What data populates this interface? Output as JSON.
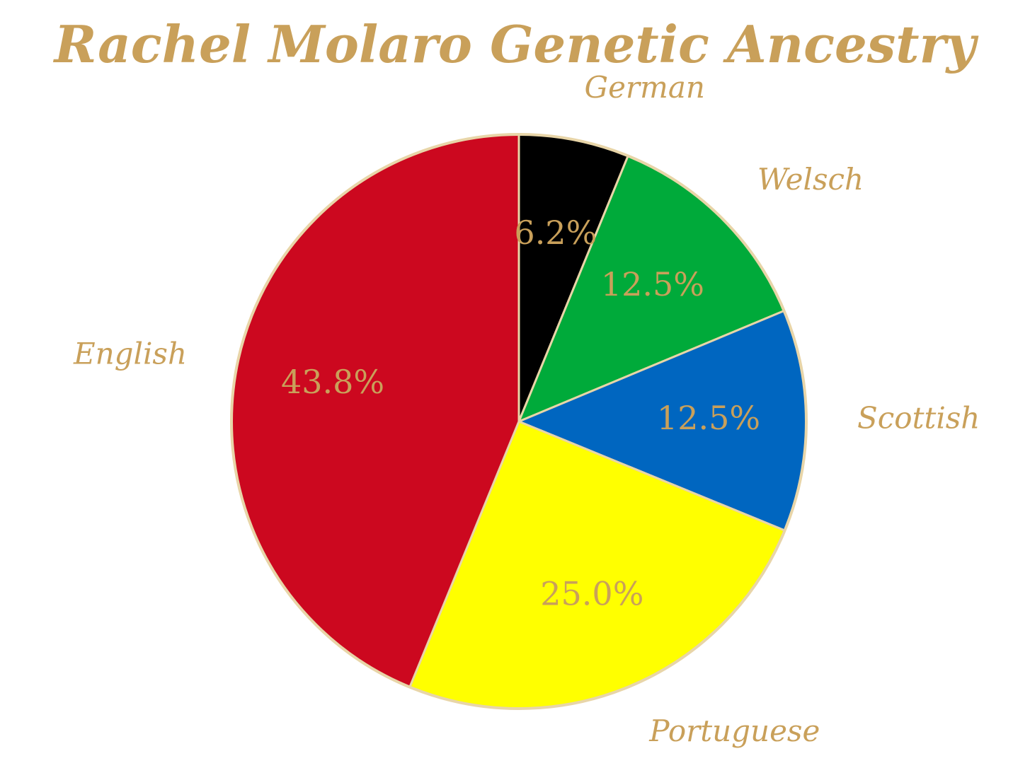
{
  "chart_data": {
    "type": "pie",
    "title": "Rachel Molaro Genetic Ancestry",
    "categories": [
      "German",
      "Welsch",
      "Scottish",
      "Portuguese",
      "English"
    ],
    "values": [
      6.2,
      12.5,
      12.5,
      25.0,
      43.8
    ],
    "value_labels": [
      "6.2%",
      "12.5%",
      "12.5%",
      "25.0%",
      "43.8%"
    ],
    "colors": [
      "#000000",
      "#00AA3A",
      "#0066C0",
      "#FFFF00",
      "#CC081F"
    ],
    "label_color": "#C9A05A",
    "slice_edge_color": "#E8D5A8",
    "start": "top",
    "direction": "clockwise",
    "legend": "none"
  }
}
